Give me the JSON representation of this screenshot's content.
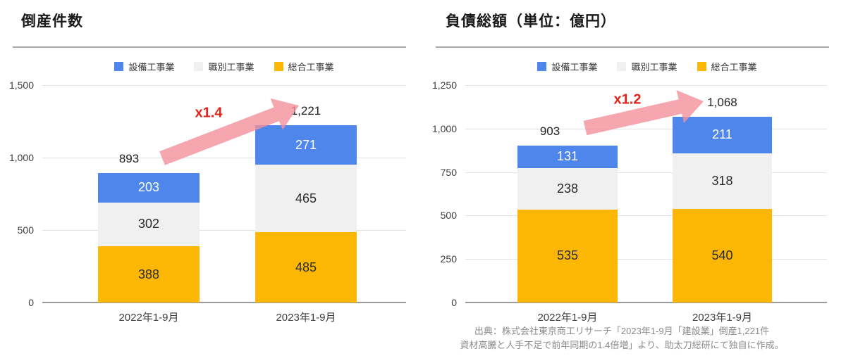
{
  "footer": {
    "line1": "出典：株式会社東京商工リサーチ「2023年1-9月「建設業」倒産1,221件",
    "line2": "資材高騰と人手不足で前年同期の1.4倍増」より、助太刀総研にて独自に作成。"
  },
  "style": {
    "annotation_color": "#e2241c",
    "arrow_color": "#f4909b",
    "blue": "#4e86ec",
    "gray": "#f0f0f1",
    "yellow": "#fbb703"
  },
  "chart_data": [
    {
      "type": "bar",
      "stacked": true,
      "title": "倒産件数",
      "categories": [
        "2022年1-9月",
        "2023年1-9月"
      ],
      "series": [
        {
          "name": "総合工事業",
          "color": "#fbb703",
          "label_color": "#2b2b2b",
          "values": [
            388,
            485
          ]
        },
        {
          "name": "職別工事業",
          "color": "#f0f0f1",
          "label_color": "#2b2b2b",
          "values": [
            302,
            465
          ]
        },
        {
          "name": "設備工事業",
          "color": "#4e86ec",
          "label_color": "#ffffff",
          "values": [
            203,
            271
          ]
        }
      ],
      "legend_order": [
        "設備工事業",
        "職別工事業",
        "総合工事業"
      ],
      "totals": [
        "893",
        "1,221"
      ],
      "growth_annotation": "x1.4",
      "ylim": [
        0,
        1500
      ],
      "yticks": [
        {
          "value": 0,
          "label": "0"
        },
        {
          "value": 500,
          "label": "500"
        },
        {
          "value": 1000,
          "label": "1,000"
        },
        {
          "value": 1500,
          "label": "1,500"
        }
      ],
      "grid": true,
      "legend_position": "top"
    },
    {
      "type": "bar",
      "stacked": true,
      "title": "負債総額（単位：億円）",
      "categories": [
        "2022年1-9月",
        "2023年1-9月"
      ],
      "series": [
        {
          "name": "総合工事業",
          "color": "#fbb703",
          "label_color": "#2b2b2b",
          "values": [
            535,
            540
          ]
        },
        {
          "name": "職別工事業",
          "color": "#f0f0f1",
          "label_color": "#2b2b2b",
          "values": [
            238,
            318
          ]
        },
        {
          "name": "設備工事業",
          "color": "#4e86ec",
          "label_color": "#ffffff",
          "values": [
            131,
            211
          ]
        }
      ],
      "legend_order": [
        "設備工事業",
        "職別工事業",
        "総合工事業"
      ],
      "totals": [
        "903",
        "1,068"
      ],
      "growth_annotation": "x1.2",
      "ylim": [
        0,
        1250
      ],
      "yticks": [
        {
          "value": 0,
          "label": "0"
        },
        {
          "value": 250,
          "label": "250"
        },
        {
          "value": 500,
          "label": "500"
        },
        {
          "value": 750,
          "label": "750"
        },
        {
          "value": 1000,
          "label": "1,000"
        },
        {
          "value": 1250,
          "label": "1,250"
        }
      ],
      "grid": true,
      "legend_position": "top"
    }
  ]
}
